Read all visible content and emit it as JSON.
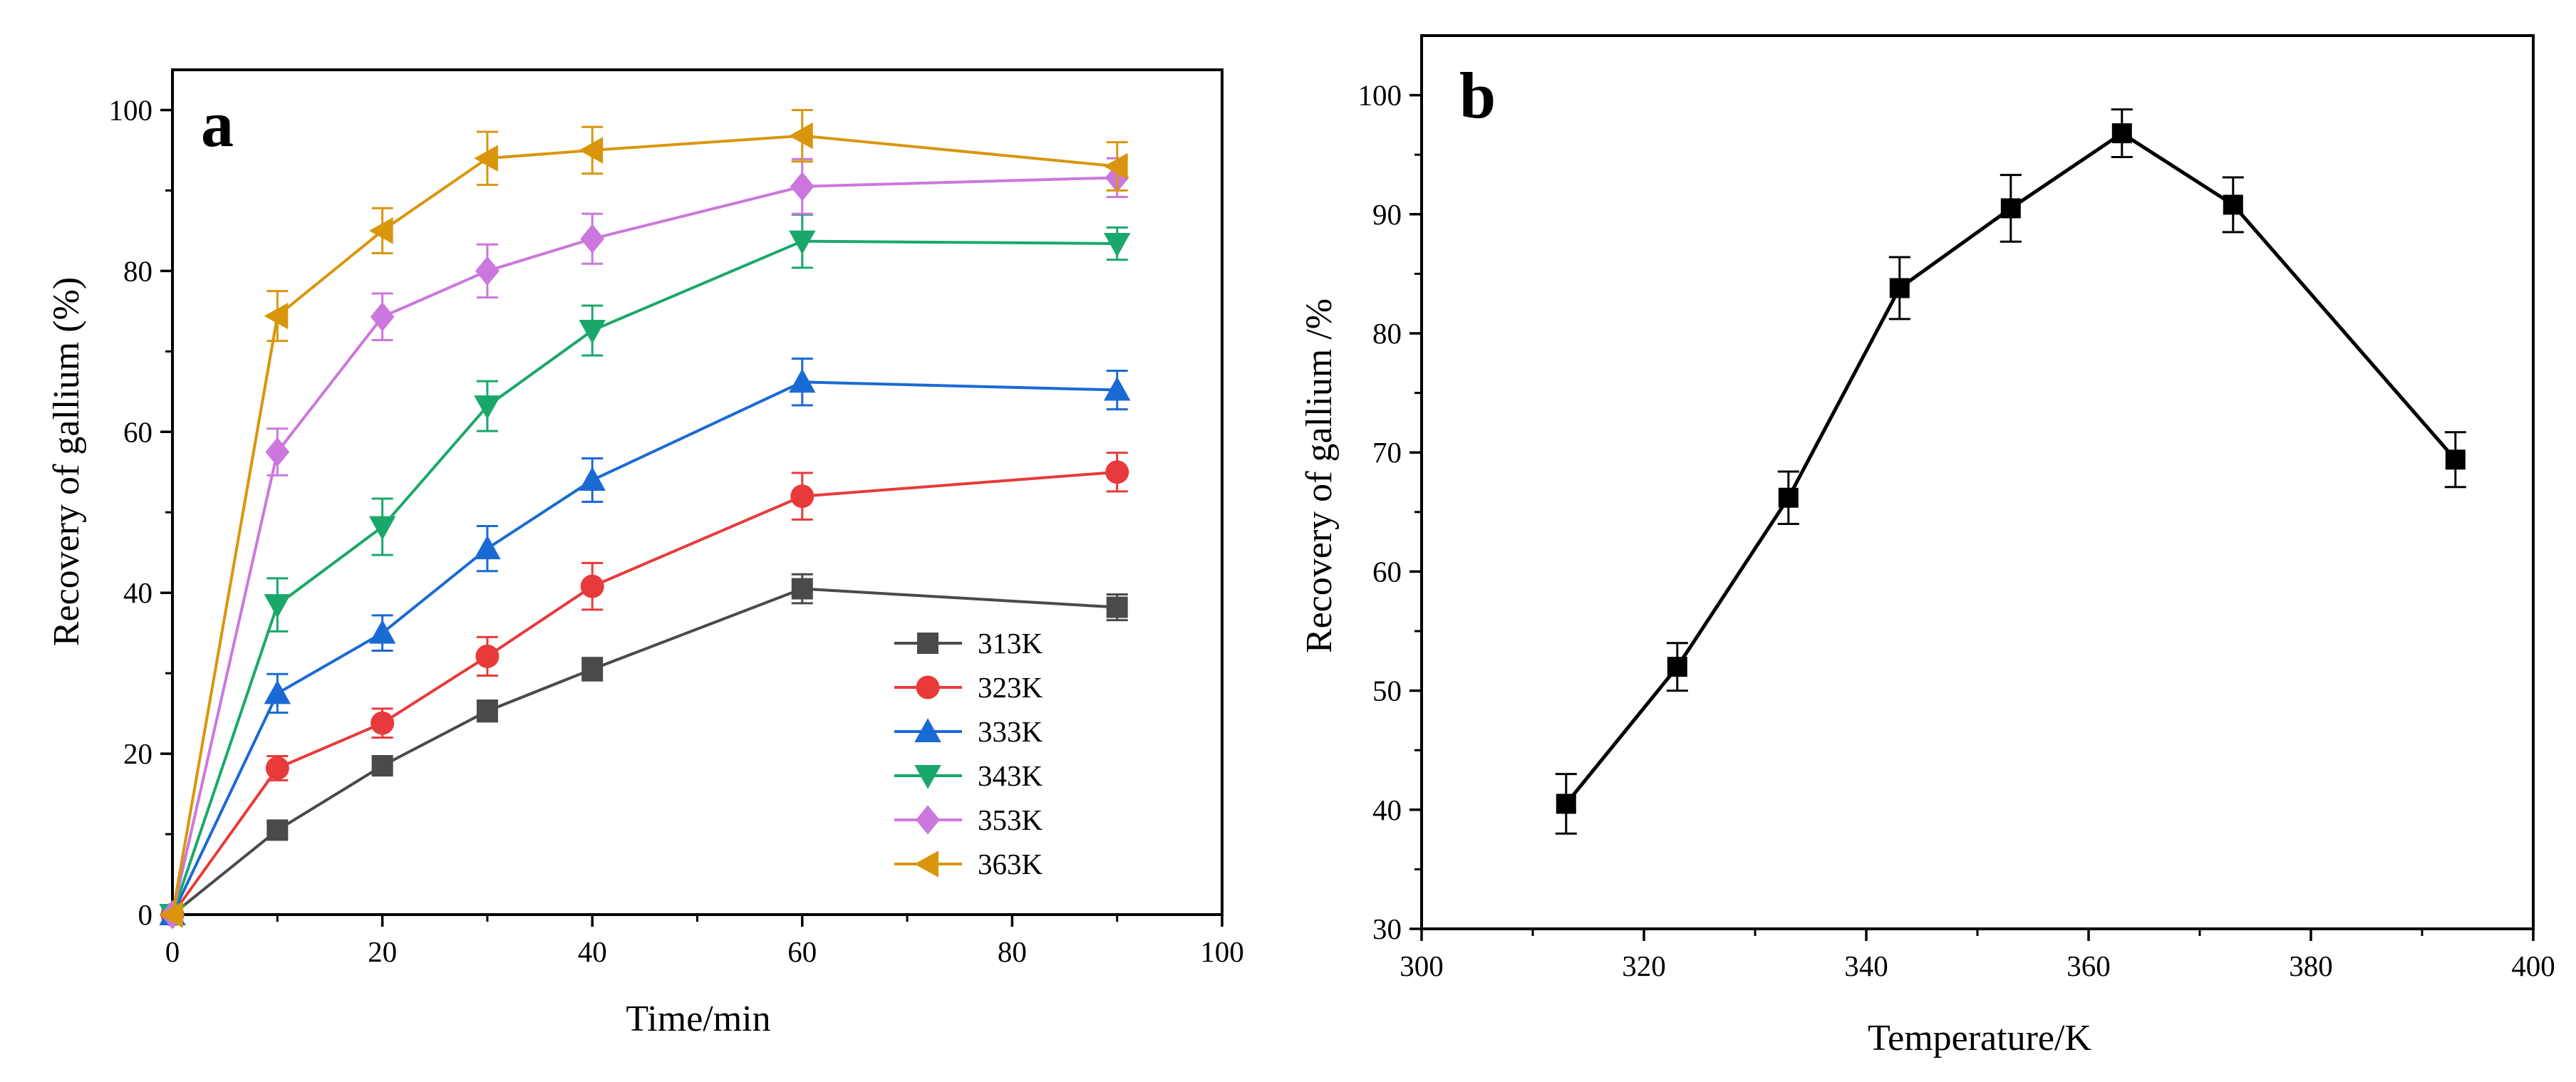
{
  "chart_data": [
    {
      "panel": "a",
      "type": "line",
      "xlabel": "Time/min",
      "ylabel": "Recovery of gallium (%)",
      "xlim": [
        0,
        100
      ],
      "ylim": [
        0,
        105
      ],
      "xticks": [
        0,
        20,
        40,
        60,
        80,
        100
      ],
      "yticks": [
        0,
        20,
        40,
        60,
        80,
        100
      ],
      "legend_position": "bottom-right",
      "x": [
        0,
        10,
        20,
        30,
        40,
        60,
        90
      ],
      "series": [
        {
          "name": "313K",
          "color": "#4a4a4a",
          "marker": "square",
          "values": [
            0,
            10.5,
            18.5,
            25.3,
            30.5,
            40.5,
            38.2
          ],
          "errors": [
            0.5,
            1.0,
            1.2,
            1.3,
            1.4,
            1.8,
            1.6
          ]
        },
        {
          "name": "323K",
          "color": "#e83a3a",
          "marker": "circle",
          "values": [
            0,
            18.2,
            23.8,
            32.1,
            40.8,
            52.0,
            55.0
          ],
          "errors": [
            0.5,
            1.5,
            1.8,
            2.4,
            2.9,
            2.9,
            2.4
          ]
        },
        {
          "name": "333K",
          "color": "#1a6ad4",
          "marker": "triangle-up",
          "values": [
            0,
            27.5,
            35.0,
            45.5,
            54.0,
            66.2,
            65.2
          ],
          "errors": [
            0.5,
            2.4,
            2.2,
            2.8,
            2.7,
            2.9,
            2.4
          ]
        },
        {
          "name": "343K",
          "color": "#1aa86a",
          "marker": "triangle-down",
          "values": [
            0,
            38.5,
            48.2,
            63.2,
            72.6,
            83.7,
            83.4
          ],
          "errors": [
            0.5,
            3.3,
            3.5,
            3.1,
            3.1,
            3.3,
            2.0
          ]
        },
        {
          "name": "353K",
          "color": "#cc77dd",
          "marker": "diamond",
          "values": [
            0,
            57.5,
            74.3,
            80.0,
            84.0,
            90.5,
            91.6
          ],
          "errors": [
            0.5,
            2.9,
            2.9,
            3.3,
            3.1,
            3.4,
            2.4
          ]
        },
        {
          "name": "363K",
          "color": "#d9960d",
          "marker": "triangle-left",
          "values": [
            0,
            74.4,
            85.0,
            94.0,
            95.0,
            96.8,
            93.0
          ],
          "errors": [
            0.5,
            3.1,
            2.8,
            3.3,
            2.9,
            3.2,
            3.0
          ]
        }
      ]
    },
    {
      "panel": "b",
      "type": "line",
      "xlabel": "Temperature/K",
      "ylabel": "Recovery of gallium /%",
      "xlim": [
        300,
        400
      ],
      "ylim": [
        30,
        105
      ],
      "xticks": [
        300,
        320,
        340,
        360,
        380,
        400
      ],
      "yticks": [
        30,
        40,
        50,
        60,
        70,
        80,
        90,
        100
      ],
      "series": [
        {
          "name": "Recovery",
          "color": "#000000",
          "marker": "square",
          "x": [
            313,
            323,
            333,
            343,
            353,
            363,
            373,
            393
          ],
          "values": [
            40.5,
            52.0,
            66.2,
            83.8,
            90.5,
            96.8,
            90.8,
            69.4
          ],
          "errors": [
            2.5,
            2.0,
            2.2,
            2.6,
            2.8,
            2.0,
            2.3,
            2.3
          ]
        }
      ]
    }
  ]
}
